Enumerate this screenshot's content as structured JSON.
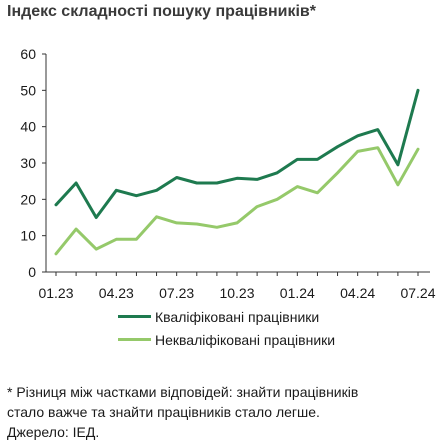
{
  "title": "Індекс складності пошуку працівників*",
  "chart_data": {
    "type": "line",
    "title": "Індекс складності пошуку працівників*",
    "xlabel": "",
    "ylabel": "",
    "ylim": [
      0,
      60
    ],
    "yticks": [
      0,
      10,
      20,
      30,
      40,
      50,
      60
    ],
    "x": [
      "01.23",
      "02.23",
      "03.23",
      "04.23",
      "05.23",
      "06.23",
      "07.23",
      "08.23",
      "09.23",
      "10.23",
      "11.23",
      "12.23",
      "01.24",
      "02.24",
      "03.24",
      "04.24",
      "05.24",
      "06.24",
      "07.24"
    ],
    "xtick_labels": [
      "01.23",
      "04.23",
      "07.23",
      "10.23",
      "01.24",
      "04.24",
      "07.24"
    ],
    "grid": false,
    "legend_position": "bottom",
    "series": [
      {
        "name": "Кваліфіковані працівники",
        "color": "#1e7a4f",
        "values": [
          18.5,
          24.5,
          15,
          22.5,
          21,
          22.5,
          26,
          24.5,
          24.5,
          25.8,
          25.5,
          27.3,
          31,
          31,
          34.5,
          37.5,
          39.2,
          29.5,
          50
        ]
      },
      {
        "name": "Некваліфіковані працівники",
        "color": "#95c96a",
        "values": [
          5,
          11.8,
          6.3,
          9,
          9,
          15.2,
          13.5,
          13.2,
          12.3,
          13.5,
          18,
          20,
          23.5,
          21.8,
          27.3,
          33.2,
          34.2,
          24,
          33.8
        ]
      }
    ]
  },
  "footnote": {
    "line1": "* Різниця між частками відповідей: знайти працівників",
    "line2": "стало важче та знайти працівників стало легше.",
    "source": "Джерело: ІЕД."
  }
}
